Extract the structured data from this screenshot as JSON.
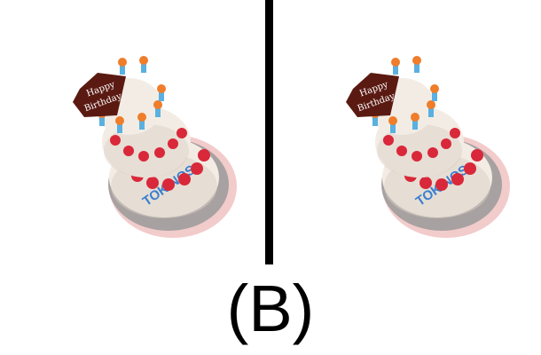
{
  "caption": "(B)",
  "plaque": {
    "line1": "Happy",
    "line2": "Birthday"
  },
  "band_text": "TOKINOS",
  "colors": {
    "cream": "#f2ece4",
    "cream_shadow": "#d9cfc3",
    "strawberry": "#d9283a",
    "chocolate": "#5a1a12",
    "candle_orange": "#ef7d2a",
    "base_gray": "#9a9a9a",
    "lace_red": "#d96a6a"
  },
  "images": [
    {
      "name": "cake-left"
    },
    {
      "name": "cake-right"
    }
  ]
}
